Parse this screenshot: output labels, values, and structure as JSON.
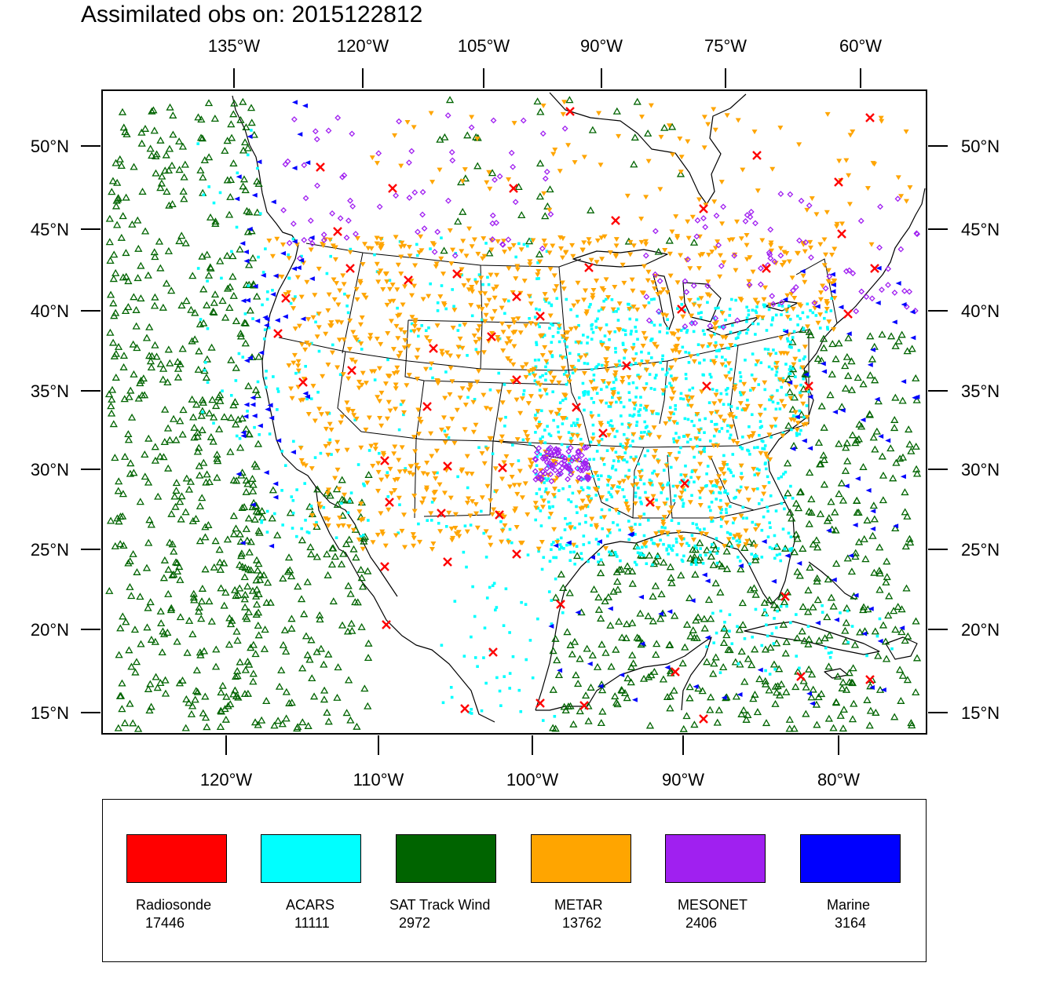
{
  "title": "Assimilated obs on: 2015122812",
  "map": {
    "top_axis_labels": [
      "135°W",
      "120°W",
      "105°W",
      "90°W",
      "75°W",
      "60°W"
    ],
    "bottom_axis_labels": [
      "120°W",
      "110°W",
      "100°W",
      "90°W",
      "80°W"
    ],
    "left_axis_labels": [
      "50°N",
      "45°N",
      "40°N",
      "35°N",
      "30°N",
      "25°N",
      "20°N",
      "15°N"
    ],
    "right_axis_labels": [
      "50°N",
      "45°N",
      "40°N",
      "35°N",
      "30°N",
      "25°N",
      "20°N",
      "15°N"
    ],
    "background_color": "#ffffff",
    "coastline_color": "#000000"
  },
  "legend": [
    {
      "name": "Radiosonde",
      "count": "17446",
      "color": "#ff0000",
      "marker": "x-cross"
    },
    {
      "name": "ACARS",
      "count": "11111",
      "color": "#00ffff",
      "marker": "small-square"
    },
    {
      "name": "SAT Track Wind",
      "count": "2972",
      "color": "#006400",
      "marker": "open-triangle-up"
    },
    {
      "name": "METAR",
      "count": "13762",
      "color": "#ffa500",
      "marker": "triangle-down"
    },
    {
      "name": "MESONET",
      "count": "2406",
      "color": "#a020f0",
      "marker": "diamond"
    },
    {
      "name": "Marine",
      "count": "3164",
      "color": "#0000ff",
      "marker": "triangle-left"
    }
  ]
}
